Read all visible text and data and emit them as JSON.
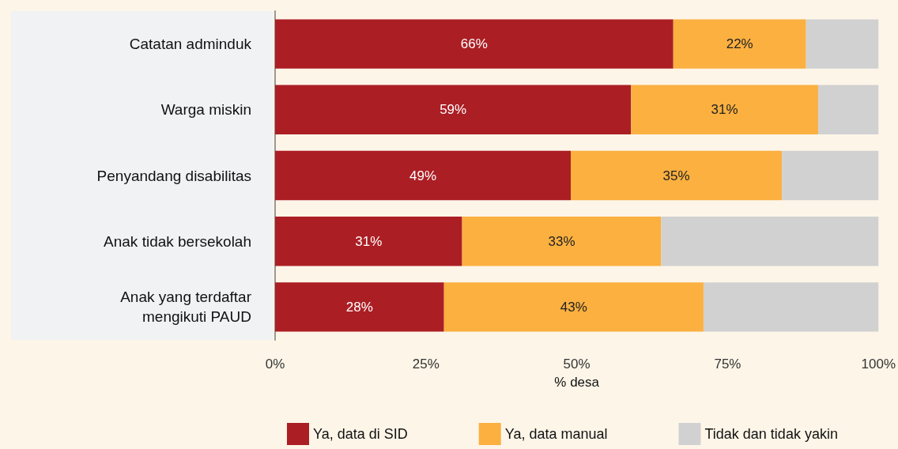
{
  "chart_data": {
    "type": "bar",
    "orientation": "horizontal",
    "stacked": true,
    "xlabel": "% desa",
    "categories": [
      "Catatan adminduk",
      "Warga miskin",
      "Penyandang disabilitas",
      "Anak tidak bersekolah",
      "Anak yang terdaftar\nmengikuti PAUD"
    ],
    "series": [
      {
        "name": "Ya, data di SID",
        "color": "#ab1e24",
        "values": [
          66,
          59,
          49,
          31,
          28
        ],
        "value_labels": [
          "66%",
          "59%",
          "49%",
          "31%",
          "28%"
        ]
      },
      {
        "name": "Ya, data manual",
        "color": "#fbb040",
        "values": [
          22,
          31,
          35,
          33,
          43
        ],
        "value_labels": [
          "22%",
          "31%",
          "35%",
          "33%",
          "43%"
        ]
      },
      {
        "name": "Tidak dan tidak yakin",
        "color": "#d1d1d1",
        "values": [
          12,
          10,
          16,
          36,
          29
        ],
        "value_labels": [
          null,
          null,
          null,
          null,
          null
        ]
      }
    ],
    "xlim": [
      0,
      100
    ],
    "xticks": [
      {
        "value": 0,
        "label": "0%"
      },
      {
        "value": 25,
        "label": "25%"
      },
      {
        "value": 50,
        "label": "50%"
      },
      {
        "value": 75,
        "label": "75%"
      },
      {
        "value": 100,
        "label": "100%"
      }
    ],
    "grid": false,
    "legend": "bottom"
  }
}
